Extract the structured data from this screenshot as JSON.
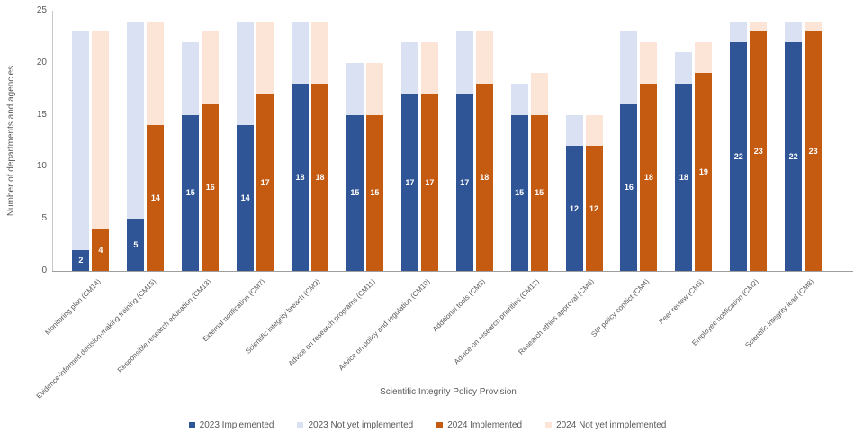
{
  "chart_data": {
    "type": "bar",
    "variant": "grouped-stacked",
    "title": "",
    "xlabel": "Scientific Integrity Policy Provision",
    "ylabel": "Number of departments and agencies",
    "ylim": [
      0,
      25
    ],
    "yticks": [
      0,
      5,
      10,
      15,
      20,
      25
    ],
    "grid": false,
    "legend_position": "bottom",
    "text_color": "#595959",
    "segment_label_color": "#FFFFFF",
    "categories": [
      "Monitoring plan (CM14)",
      "Evidence-informed decision-making training (CM15)",
      "Responsible research education (CM13)",
      "External notification (CM7)",
      "Scientific integrity breach (CM9)",
      "Advice on research programs (CM11)",
      "Advice on policy and regulation (CM10)",
      "Additional tools (CM3)",
      "Advice on research priorities (CM12)",
      "Research ethics approval (CM6)",
      "SIP policy conflict (CM4)",
      "Peer review (CM5)",
      "Employee notification (CM2)",
      "Scientific integrity lead (CM8)"
    ],
    "series": [
      {
        "name": "2023 Implemented",
        "color": "#2F5597",
        "role": "implemented",
        "labeled": true,
        "values": [
          2,
          5,
          15,
          14,
          18,
          15,
          17,
          17,
          15,
          12,
          16,
          18,
          22,
          22
        ]
      },
      {
        "name": "2023 Not yet implemented",
        "color": "#D9E1F2",
        "role": "not-yet-implemented",
        "labeled": false,
        "values": [
          21,
          19,
          7,
          10,
          6,
          5,
          5,
          6,
          3,
          3,
          7,
          3,
          2,
          2
        ]
      },
      {
        "name": "2024 Implemented",
        "color": "#C55A11",
        "role": "implemented",
        "labeled": true,
        "values": [
          4,
          14,
          16,
          17,
          18,
          15,
          17,
          18,
          15,
          12,
          18,
          19,
          23,
          23
        ]
      },
      {
        "name": "2024 Not yet inmplemented",
        "color": "#FCE4D6",
        "role": "not-yet-implemented",
        "labeled": false,
        "values": [
          19,
          10,
          7,
          7,
          6,
          5,
          5,
          5,
          4,
          3,
          4,
          3,
          1,
          1
        ]
      }
    ],
    "stack_pairs": [
      [
        0,
        1
      ],
      [
        2,
        3
      ]
    ],
    "stack_pair_names": [
      "2023",
      "2024"
    ],
    "bar_totals": {
      "2023": [
        23,
        24,
        22,
        24,
        24,
        20,
        22,
        23,
        18,
        15,
        23,
        21,
        24,
        24
      ],
      "2024": [
        23,
        24,
        23,
        24,
        24,
        20,
        22,
        23,
        19,
        15,
        22,
        22,
        24,
        24
      ]
    }
  }
}
